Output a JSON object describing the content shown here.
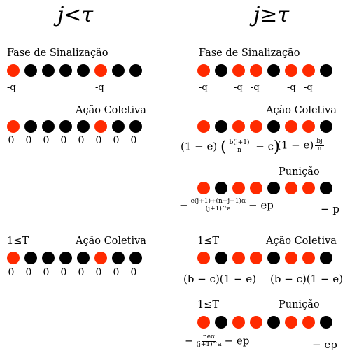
{
  "left": {
    "header": "j<τ",
    "signal": {
      "label": "Fase de Sinalização",
      "dots": [
        "r",
        "b",
        "b",
        "b",
        "b",
        "r",
        "b",
        "b"
      ],
      "costs": [
        "-q",
        "-q"
      ]
    },
    "collective": {
      "label": "Ação Coletiva",
      "dots": [
        "r",
        "b",
        "b",
        "b",
        "b",
        "r",
        "b",
        "b"
      ],
      "payoffs": [
        "0",
        "0",
        "0",
        "0",
        "0",
        "0",
        "0",
        "0"
      ]
    },
    "collective2": {
      "tag": "1≤T",
      "label": "Ação Coletiva",
      "dots": [
        "r",
        "b",
        "b",
        "b",
        "b",
        "r",
        "b",
        "b"
      ],
      "payoffs": [
        "0",
        "0",
        "0",
        "0",
        "0",
        "0",
        "0",
        "0"
      ]
    }
  },
  "right": {
    "header": "j≥τ",
    "signal": {
      "label": "Fase de Sinalização",
      "dots": [
        "r",
        "b",
        "r",
        "r",
        "b",
        "r",
        "r",
        "b"
      ],
      "costs": [
        "-q",
        "-q",
        "-q",
        "-q",
        "-q"
      ]
    },
    "collective": {
      "label": "Ação Coletiva",
      "dots": [
        "r",
        "b",
        "r",
        "r",
        "b",
        "r",
        "r",
        "b"
      ],
      "coop_a": "(1 − e)",
      "coop_frac_num": "b(j+1)",
      "coop_frac_den": "n",
      "coop_c": "− c",
      "def_a": "(1 − e)",
      "def_frac_num": "bj",
      "def_frac_den": "n"
    },
    "punish": {
      "label": "Punição",
      "dots": [
        "r",
        "b",
        "r",
        "r",
        "b",
        "r",
        "r",
        "b"
      ],
      "coop_minus": "−",
      "coop_frac_num": "e(j+1)+(n−j−1)α",
      "coop_frac_den": "(j+1)^a",
      "coop_tail": "− ep",
      "def": "− p"
    },
    "collective2": {
      "tag": "1≤T",
      "label": "Ação Coletiva",
      "dots": [
        "r",
        "b",
        "r",
        "r",
        "b",
        "r",
        "r",
        "b"
      ],
      "coop": "(b − c)(1 − e)",
      "def": "(b − c)(1 − e)"
    },
    "punish2": {
      "tag": "1≤T",
      "label": "Punição",
      "dots": [
        "r",
        "b",
        "r",
        "r",
        "b",
        "r",
        "r",
        "b"
      ],
      "coop_minus": "−",
      "coop_frac_num": "neα",
      "coop_frac_den": "(j+1)^a",
      "coop_tail": "− ep",
      "def": "− ep"
    }
  },
  "colors": {
    "red": "#ff2a00",
    "black": "#000000"
  }
}
